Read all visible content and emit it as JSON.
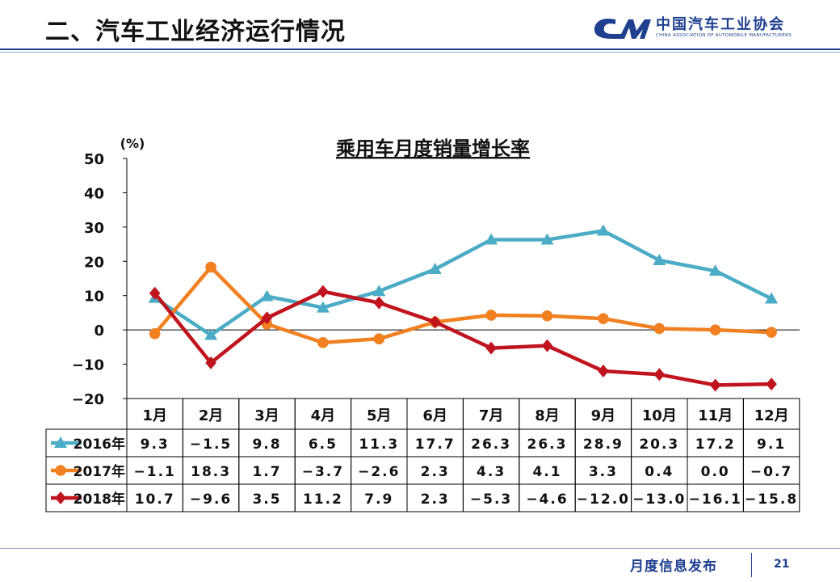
{
  "header": {
    "title": "二、汽车工业经济运行情况",
    "logo_name": "中国汽车工业协会",
    "logo_sub": "CHINA ASSOCIATION OF AUTOMOBILE MANUFACTURERS"
  },
  "footer": {
    "label": "月度信息发布",
    "page_number": "21"
  },
  "colors": {
    "brand": "#1f3f8f",
    "series_2016": "#4bacc6",
    "series_2017": "#f08020",
    "series_2018": "#c0141e"
  },
  "chart_data": {
    "type": "line",
    "title": "乘用车月度销量增长率",
    "ylabel": "(%)",
    "xlabel": "",
    "ylim": [
      -20,
      50
    ],
    "yticks": [
      50,
      40,
      30,
      20,
      10,
      0,
      -10,
      -20
    ],
    "ytick_labels": [
      "50",
      "40",
      "30",
      "20",
      "10",
      "0",
      "−10",
      "−20"
    ],
    "grid": false,
    "legend": "table-left",
    "categories": [
      "1月",
      "2月",
      "3月",
      "4月",
      "5月",
      "6月",
      "7月",
      "8月",
      "9月",
      "10月",
      "11月",
      "12月"
    ],
    "series": [
      {
        "name": "2016年",
        "marker": "triangle",
        "color": "#4bacc6",
        "values": [
          9.3,
          -1.5,
          9.8,
          6.5,
          11.3,
          17.7,
          26.3,
          26.3,
          28.9,
          20.3,
          17.2,
          9.1
        ],
        "labels": [
          "9.3",
          "−1.5",
          "9.8",
          "6.5",
          "11.3",
          "17.7",
          "26.3",
          "26.3",
          "28.9",
          "20.3",
          "17.2",
          "9.1"
        ]
      },
      {
        "name": "2017年",
        "marker": "circle",
        "color": "#f08020",
        "values": [
          -1.1,
          18.3,
          1.7,
          -3.7,
          -2.6,
          2.3,
          4.3,
          4.1,
          3.3,
          0.4,
          0.0,
          -0.7
        ],
        "labels": [
          "−1.1",
          "18.3",
          "1.7",
          "−3.7",
          "−2.6",
          "2.3",
          "4.3",
          "4.1",
          "3.3",
          "0.4",
          "0.0",
          "−0.7"
        ]
      },
      {
        "name": "2018年",
        "marker": "diamond",
        "color": "#c0141e",
        "values": [
          10.7,
          -9.6,
          3.5,
          11.2,
          7.9,
          2.3,
          -5.3,
          -4.6,
          -12.0,
          -13.0,
          -16.1,
          -15.8
        ],
        "labels": [
          "10.7",
          "−9.6",
          "3.5",
          "11.2",
          "7.9",
          "2.3",
          "−5.3",
          "−4.6",
          "−12.0",
          "−13.0",
          "−16.1",
          "−15.8"
        ]
      }
    ]
  }
}
